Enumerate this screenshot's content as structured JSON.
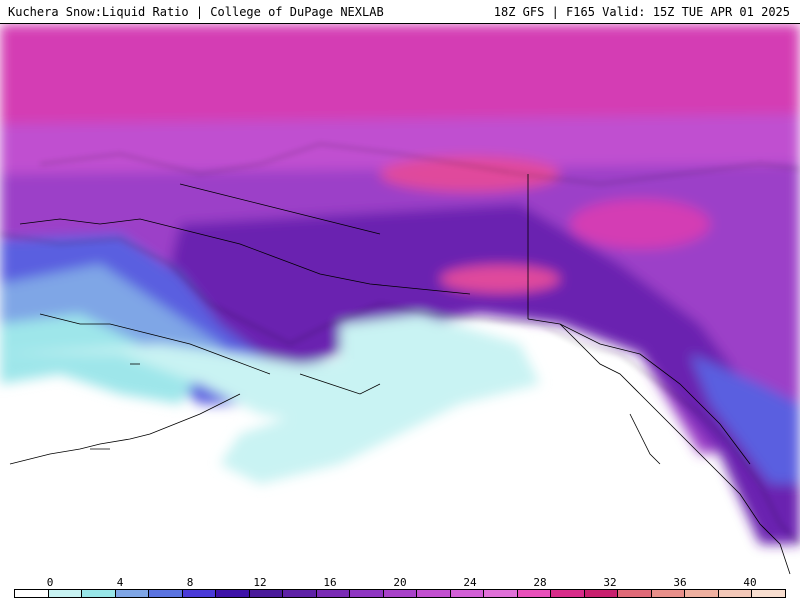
{
  "header": {
    "title_left": "Kuchera Snow:Liquid Ratio | College of DuPage NEXLAB",
    "title_right": "18Z GFS | F165 Valid: 15Z TUE APR 01 2025"
  },
  "legend": {
    "ticks": [
      "0",
      "4",
      "8",
      "12",
      "16",
      "20",
      "24",
      "28",
      "32",
      "36",
      "40"
    ],
    "colors": [
      "#ffffff",
      "#c8f2f2",
      "#98e6e8",
      "#7fa6e6",
      "#5a73e0",
      "#4a3ad8",
      "#3e12a8",
      "#4a1a9a",
      "#5e21a6",
      "#7a2bb5",
      "#8f36c2",
      "#a841c9",
      "#c24fd0",
      "#d25fd6",
      "#e070d8",
      "#e84fba",
      "#d82c8a",
      "#c8206e",
      "#e06a78",
      "#e88f8a",
      "#efb0a0",
      "#f3c8b8",
      "#f8ded0"
    ]
  },
  "map": {
    "colors": {
      "background_ocean": "#ffffff",
      "light_cyan": "#c9f3f3",
      "cyan": "#9ee6ea",
      "light_blue": "#7fa6e6",
      "blue": "#5a5fe0",
      "indigo": "#4b2ac0",
      "deep_purple": "#5a1ea8",
      "purple": "#7a2ab8",
      "violet": "#9c3fc8",
      "orchid": "#c04fd0",
      "magenta": "#d43cb4",
      "hot_pink": "#e04a9c",
      "coast_line": "#000000"
    }
  }
}
